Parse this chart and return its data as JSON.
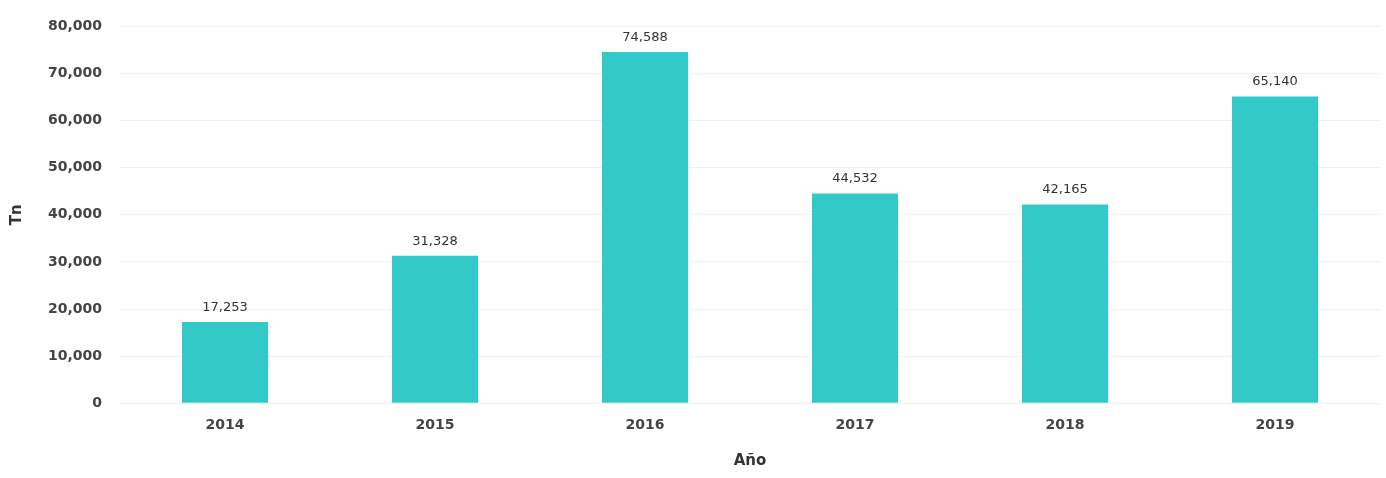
{
  "chart_data": {
    "type": "bar",
    "xlabel": "Año",
    "ylabel": "Tn",
    "categories": [
      "2014",
      "2015",
      "2016",
      "2017",
      "2018",
      "2019"
    ],
    "values": [
      17253,
      31328,
      74588,
      44532,
      42165,
      65140
    ],
    "value_labels": [
      "17,253",
      "31,328",
      "74,588",
      "44,532",
      "42,165",
      "65,140"
    ],
    "color": "#33c9c9",
    "ylim": [
      0,
      80000
    ],
    "yticks": [
      {
        "value": 0,
        "label": "0"
      },
      {
        "value": 10000,
        "label": "10,000"
      },
      {
        "value": 20000,
        "label": "20,000"
      },
      {
        "value": 30000,
        "label": "30,000"
      },
      {
        "value": 40000,
        "label": "40,000"
      },
      {
        "value": 50000,
        "label": "50,000"
      },
      {
        "value": 60000,
        "label": "60,000"
      },
      {
        "value": 70000,
        "label": "70,000"
      },
      {
        "value": 80000,
        "label": "80,000"
      }
    ],
    "grid": "y"
  }
}
